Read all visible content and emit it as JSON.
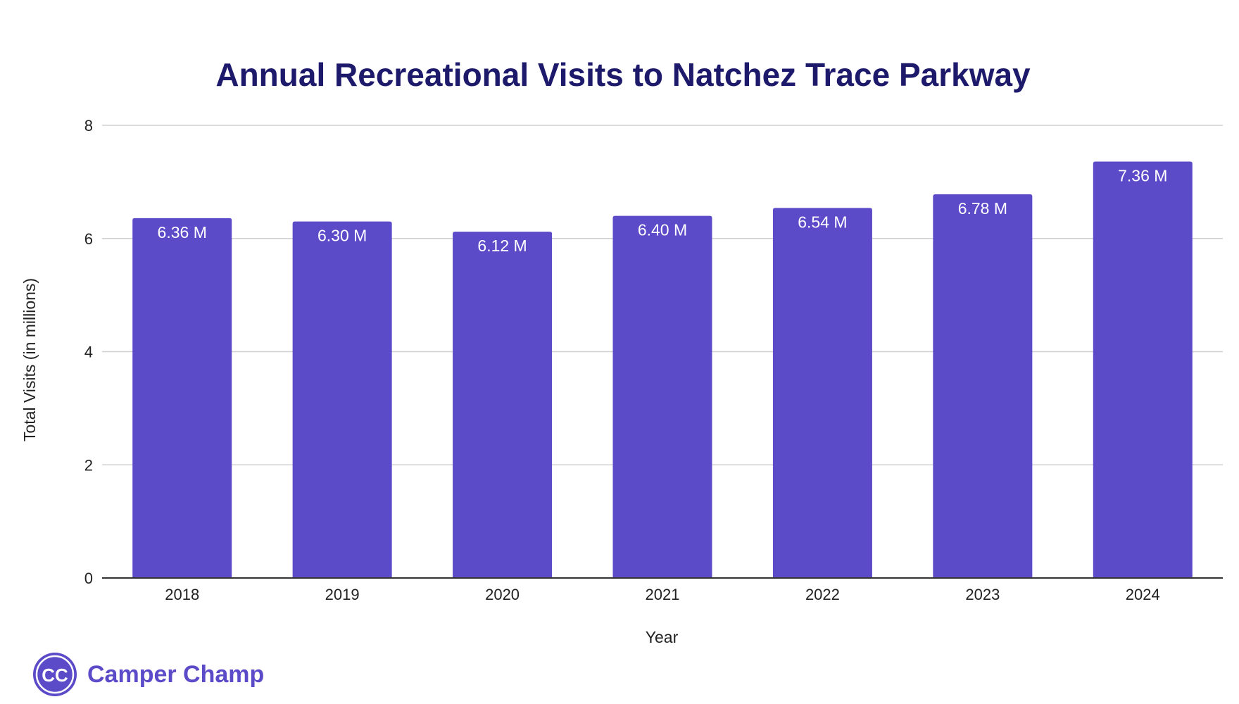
{
  "chart_data": {
    "type": "bar",
    "title": "Annual Recreational Visits to Natchez Trace Parkway",
    "xlabel": "Year",
    "ylabel": "Total Visits (in millions)",
    "categories": [
      "2018",
      "2019",
      "2020",
      "2021",
      "2022",
      "2023",
      "2024"
    ],
    "values": [
      6.36,
      6.3,
      6.12,
      6.4,
      6.54,
      6.78,
      7.36
    ],
    "data_labels": [
      "6.36 M",
      "6.30 M",
      "6.12 M",
      "6.40 M",
      "6.54 M",
      "6.78 M",
      "7.36 M"
    ],
    "ylim": [
      0,
      8
    ],
    "yticks": [
      "0",
      "2",
      "4",
      "6",
      "8"
    ],
    "grid": true,
    "legend": "none",
    "bar_color": "#5b4bc9",
    "title_color": "#1e1a6b"
  },
  "brand": {
    "logo_text": "CC",
    "name": "Camper Champ",
    "color": "#5b4bc9"
  }
}
